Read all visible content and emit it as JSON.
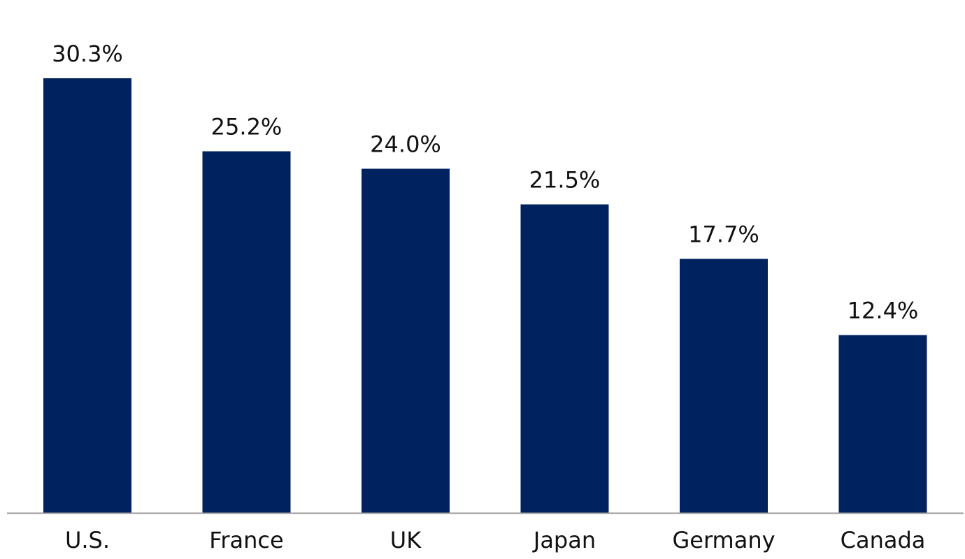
{
  "chart_data": {
    "type": "bar",
    "categories": [
      "U.S.",
      "France",
      "UK",
      "Japan",
      "Germany",
      "Canada"
    ],
    "values": [
      30.3,
      25.2,
      24.0,
      21.5,
      17.7,
      12.4
    ],
    "data_labels": [
      "30.3%",
      "25.2%",
      "24.0%",
      "21.5%",
      "17.7%",
      "12.4%"
    ],
    "ylim": [
      0,
      30.3
    ],
    "grid": false,
    "legend": "none",
    "title": "",
    "xlabel": "",
    "ylabel": "",
    "colors": {
      "bar": "#00235F",
      "axis": "#9a9a9a",
      "text": "#111111"
    }
  }
}
